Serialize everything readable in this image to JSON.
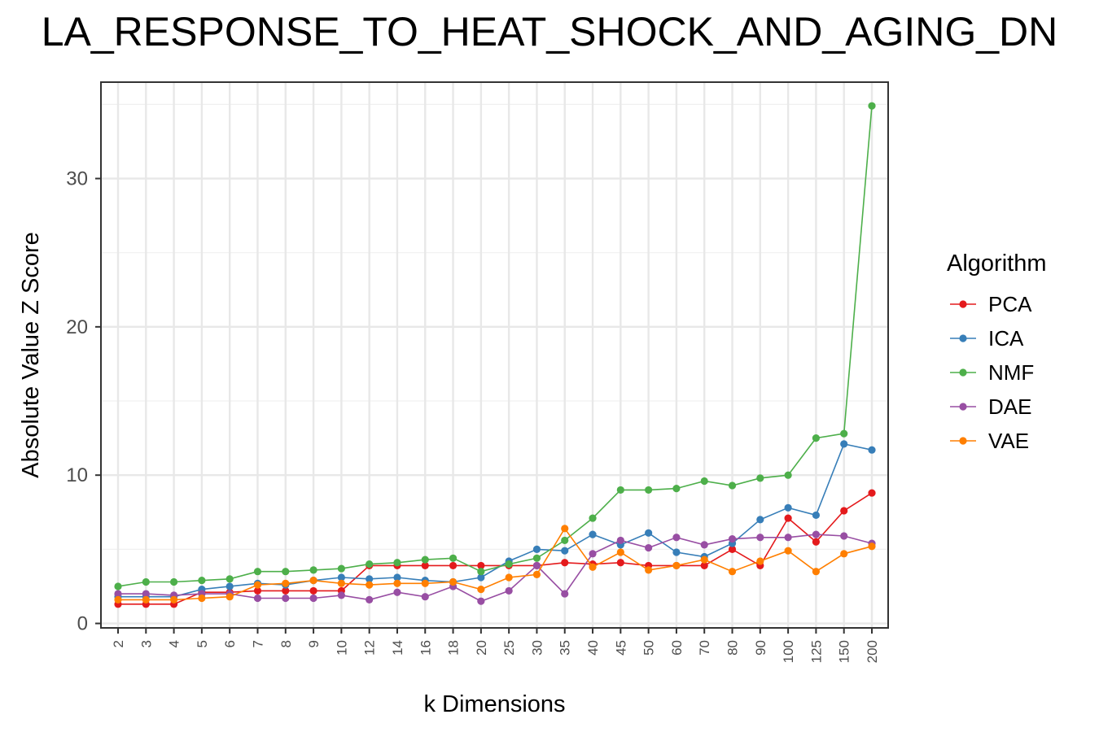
{
  "chart_data": {
    "type": "line",
    "title": "LA_RESPONSE_TO_HEAT_SHOCK_AND_AGING_DN",
    "xlabel": "k Dimensions",
    "ylabel": "Absolute Value Z Score",
    "categories": [
      "2",
      "3",
      "4",
      "5",
      "6",
      "7",
      "8",
      "9",
      "10",
      "12",
      "14",
      "16",
      "18",
      "20",
      "25",
      "30",
      "35",
      "40",
      "45",
      "50",
      "60",
      "70",
      "80",
      "90",
      "100",
      "125",
      "150",
      "200"
    ],
    "yticks": [
      0,
      10,
      20,
      30
    ],
    "ylim": [
      -0.3,
      36.5
    ],
    "grid": true,
    "legend_title": "Algorithm",
    "legend_position": "right",
    "series": [
      {
        "name": "PCA",
        "color": "#e41a1c",
        "values": [
          1.3,
          1.3,
          1.3,
          2.1,
          2.1,
          2.2,
          2.2,
          2.2,
          2.2,
          3.9,
          3.9,
          3.9,
          3.9,
          3.9,
          3.9,
          3.9,
          4.1,
          4.0,
          4.1,
          3.9,
          3.9,
          3.9,
          5.0,
          3.9,
          7.1,
          5.5,
          7.6,
          8.8
        ]
      },
      {
        "name": "ICA",
        "color": "#377eb8",
        "values": [
          1.8,
          1.8,
          1.8,
          2.3,
          2.5,
          2.7,
          2.6,
          2.9,
          3.1,
          3.0,
          3.1,
          2.9,
          2.8,
          3.1,
          4.2,
          5.0,
          4.9,
          6.0,
          5.3,
          6.1,
          4.8,
          4.5,
          5.4,
          7.0,
          7.8,
          7.3,
          12.1,
          11.7
        ]
      },
      {
        "name": "NMF",
        "color": "#4daf4a",
        "values": [
          2.5,
          2.8,
          2.8,
          2.9,
          3.0,
          3.5,
          3.5,
          3.6,
          3.7,
          4.0,
          4.1,
          4.3,
          4.4,
          3.5,
          4.0,
          4.4,
          5.6,
          7.1,
          9.0,
          9.0,
          9.1,
          9.6,
          9.3,
          9.8,
          10.0,
          12.5,
          12.8,
          34.9
        ]
      },
      {
        "name": "DAE",
        "color": "#984ea3",
        "values": [
          2.0,
          2.0,
          1.9,
          2.0,
          2.0,
          1.7,
          1.7,
          1.7,
          1.9,
          1.6,
          2.1,
          1.8,
          2.5,
          1.5,
          2.2,
          3.9,
          2.0,
          4.7,
          5.6,
          5.1,
          5.8,
          5.3,
          5.7,
          5.8,
          5.8,
          6.0,
          5.9,
          5.4
        ]
      },
      {
        "name": "VAE",
        "color": "#ff7f00",
        "values": [
          1.6,
          1.6,
          1.6,
          1.7,
          1.8,
          2.6,
          2.7,
          2.9,
          2.7,
          2.6,
          2.7,
          2.7,
          2.8,
          2.3,
          3.1,
          3.3,
          6.4,
          3.8,
          4.8,
          3.6,
          3.9,
          4.3,
          3.5,
          4.2,
          4.9,
          3.5,
          4.7,
          5.2
        ]
      }
    ]
  }
}
